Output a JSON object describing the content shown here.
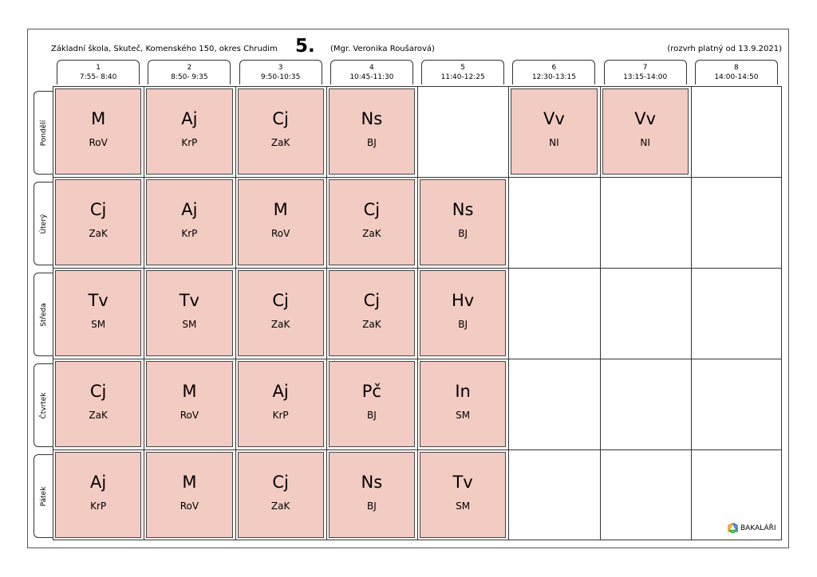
{
  "header": {
    "school": "Základní škola, Skuteč, Komenského 150, okres Chrudim",
    "class": "5.",
    "teacher": "(Mgr. Veronika Roušarová)",
    "valid": "(rozvrh platný od 13.9.2021)"
  },
  "periods": [
    {
      "num": "1",
      "time": "7:55- 8:40"
    },
    {
      "num": "2",
      "time": "8:50- 9:35"
    },
    {
      "num": "3",
      "time": "9:50-10:35"
    },
    {
      "num": "4",
      "time": "10:45-11:30"
    },
    {
      "num": "5",
      "time": "11:40-12:25"
    },
    {
      "num": "6",
      "time": "12:30-13:15"
    },
    {
      "num": "7",
      "time": "13:15-14:00"
    },
    {
      "num": "8",
      "time": "14:00-14:50"
    }
  ],
  "days": [
    {
      "name": "Pondělí",
      "lessons": [
        {
          "subject": "M",
          "teacher": "RoV"
        },
        {
          "subject": "Aj",
          "teacher": "KrP"
        },
        {
          "subject": "Cj",
          "teacher": "ZaK"
        },
        {
          "subject": "Ns",
          "teacher": "BJ"
        },
        null,
        {
          "subject": "Vv",
          "teacher": "NI"
        },
        {
          "subject": "Vv",
          "teacher": "NI"
        },
        null
      ]
    },
    {
      "name": "Úterý",
      "lessons": [
        {
          "subject": "Cj",
          "teacher": "ZaK"
        },
        {
          "subject": "Aj",
          "teacher": "KrP"
        },
        {
          "subject": "M",
          "teacher": "RoV"
        },
        {
          "subject": "Cj",
          "teacher": "ZaK"
        },
        {
          "subject": "Ns",
          "teacher": "BJ"
        },
        null,
        null,
        null
      ]
    },
    {
      "name": "Středa",
      "lessons": [
        {
          "subject": "Tv",
          "teacher": "SM"
        },
        {
          "subject": "Tv",
          "teacher": "SM"
        },
        {
          "subject": "Cj",
          "teacher": "ZaK"
        },
        {
          "subject": "Cj",
          "teacher": "ZaK"
        },
        {
          "subject": "Hv",
          "teacher": "BJ"
        },
        null,
        null,
        null
      ]
    },
    {
      "name": "Čtvrtek",
      "lessons": [
        {
          "subject": "Cj",
          "teacher": "ZaK"
        },
        {
          "subject": "M",
          "teacher": "RoV"
        },
        {
          "subject": "Aj",
          "teacher": "KrP"
        },
        {
          "subject": "Pč",
          "teacher": "BJ"
        },
        {
          "subject": "In",
          "teacher": "SM"
        },
        null,
        null,
        null
      ]
    },
    {
      "name": "Pátek",
      "lessons": [
        {
          "subject": "Aj",
          "teacher": "KrP"
        },
        {
          "subject": "M",
          "teacher": "RoV"
        },
        {
          "subject": "Cj",
          "teacher": "ZaK"
        },
        {
          "subject": "Ns",
          "teacher": "BJ"
        },
        {
          "subject": "Tv",
          "teacher": "SM"
        },
        null,
        null,
        null
      ]
    }
  ],
  "lesson_color": "#f2cbc2",
  "logo": {
    "text": "BAKALÁŘI",
    "icon": "bakalari-logo-icon"
  }
}
